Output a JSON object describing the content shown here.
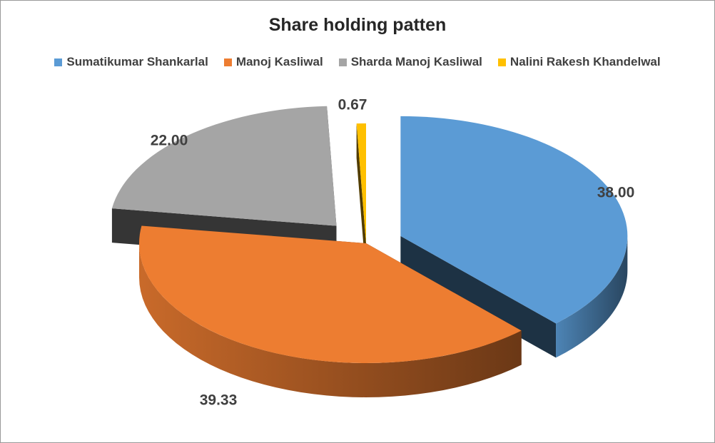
{
  "chart_data": {
    "type": "pie",
    "title": "Share holding patten",
    "categories": [
      "Sumatikumar Shankarlal",
      "Manoj Kasliwal",
      "Sharda Manoj Kasliwal",
      "Nalini Rakesh Khandelwal"
    ],
    "values": [
      38.0,
      39.33,
      22.0,
      0.67
    ],
    "value_labels": [
      "38.00",
      "39.33",
      "22.00",
      "0.67"
    ],
    "colors": [
      "#5b9bd5",
      "#ed7d31",
      "#a5a5a5",
      "#ffc000"
    ],
    "exploded": true,
    "three_d": true,
    "legend_position": "top"
  }
}
